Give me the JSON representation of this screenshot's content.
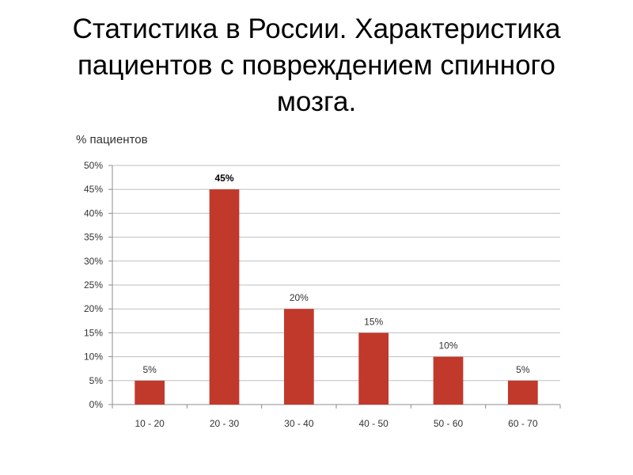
{
  "slide": {
    "title_lines": [
      "Статистика в России. Характеристика",
      "пациентов с повреждением спинного",
      "мозга."
    ]
  },
  "chart_data": {
    "type": "bar",
    "title": "Статистика в России. Характеристика пациентов с повреждением спинного мозга.",
    "ylabel": "% пациентов",
    "xlabel": "",
    "categories": [
      "10 - 20",
      "20 - 30",
      "30 - 40",
      "40 - 50",
      "50 - 60",
      "60 - 70"
    ],
    "values": [
      5,
      45,
      20,
      15,
      10,
      5
    ],
    "data_labels": [
      "5%",
      "45%",
      "20%",
      "15%",
      "10%",
      "5%"
    ],
    "highlight_label_index": 1,
    "ylim": [
      0,
      50
    ],
    "y_ticks": [
      0,
      5,
      10,
      15,
      20,
      25,
      30,
      35,
      40,
      45,
      50
    ],
    "y_tick_labels": [
      "0%",
      "5%",
      "10%",
      "15%",
      "20%",
      "25%",
      "30%",
      "35%",
      "40%",
      "45%",
      "50%"
    ],
    "grid": true,
    "legend": "none",
    "bar_color": "#c0392b",
    "grid_color": "#bfbfbf",
    "axis_color": "#8c8c8c"
  }
}
